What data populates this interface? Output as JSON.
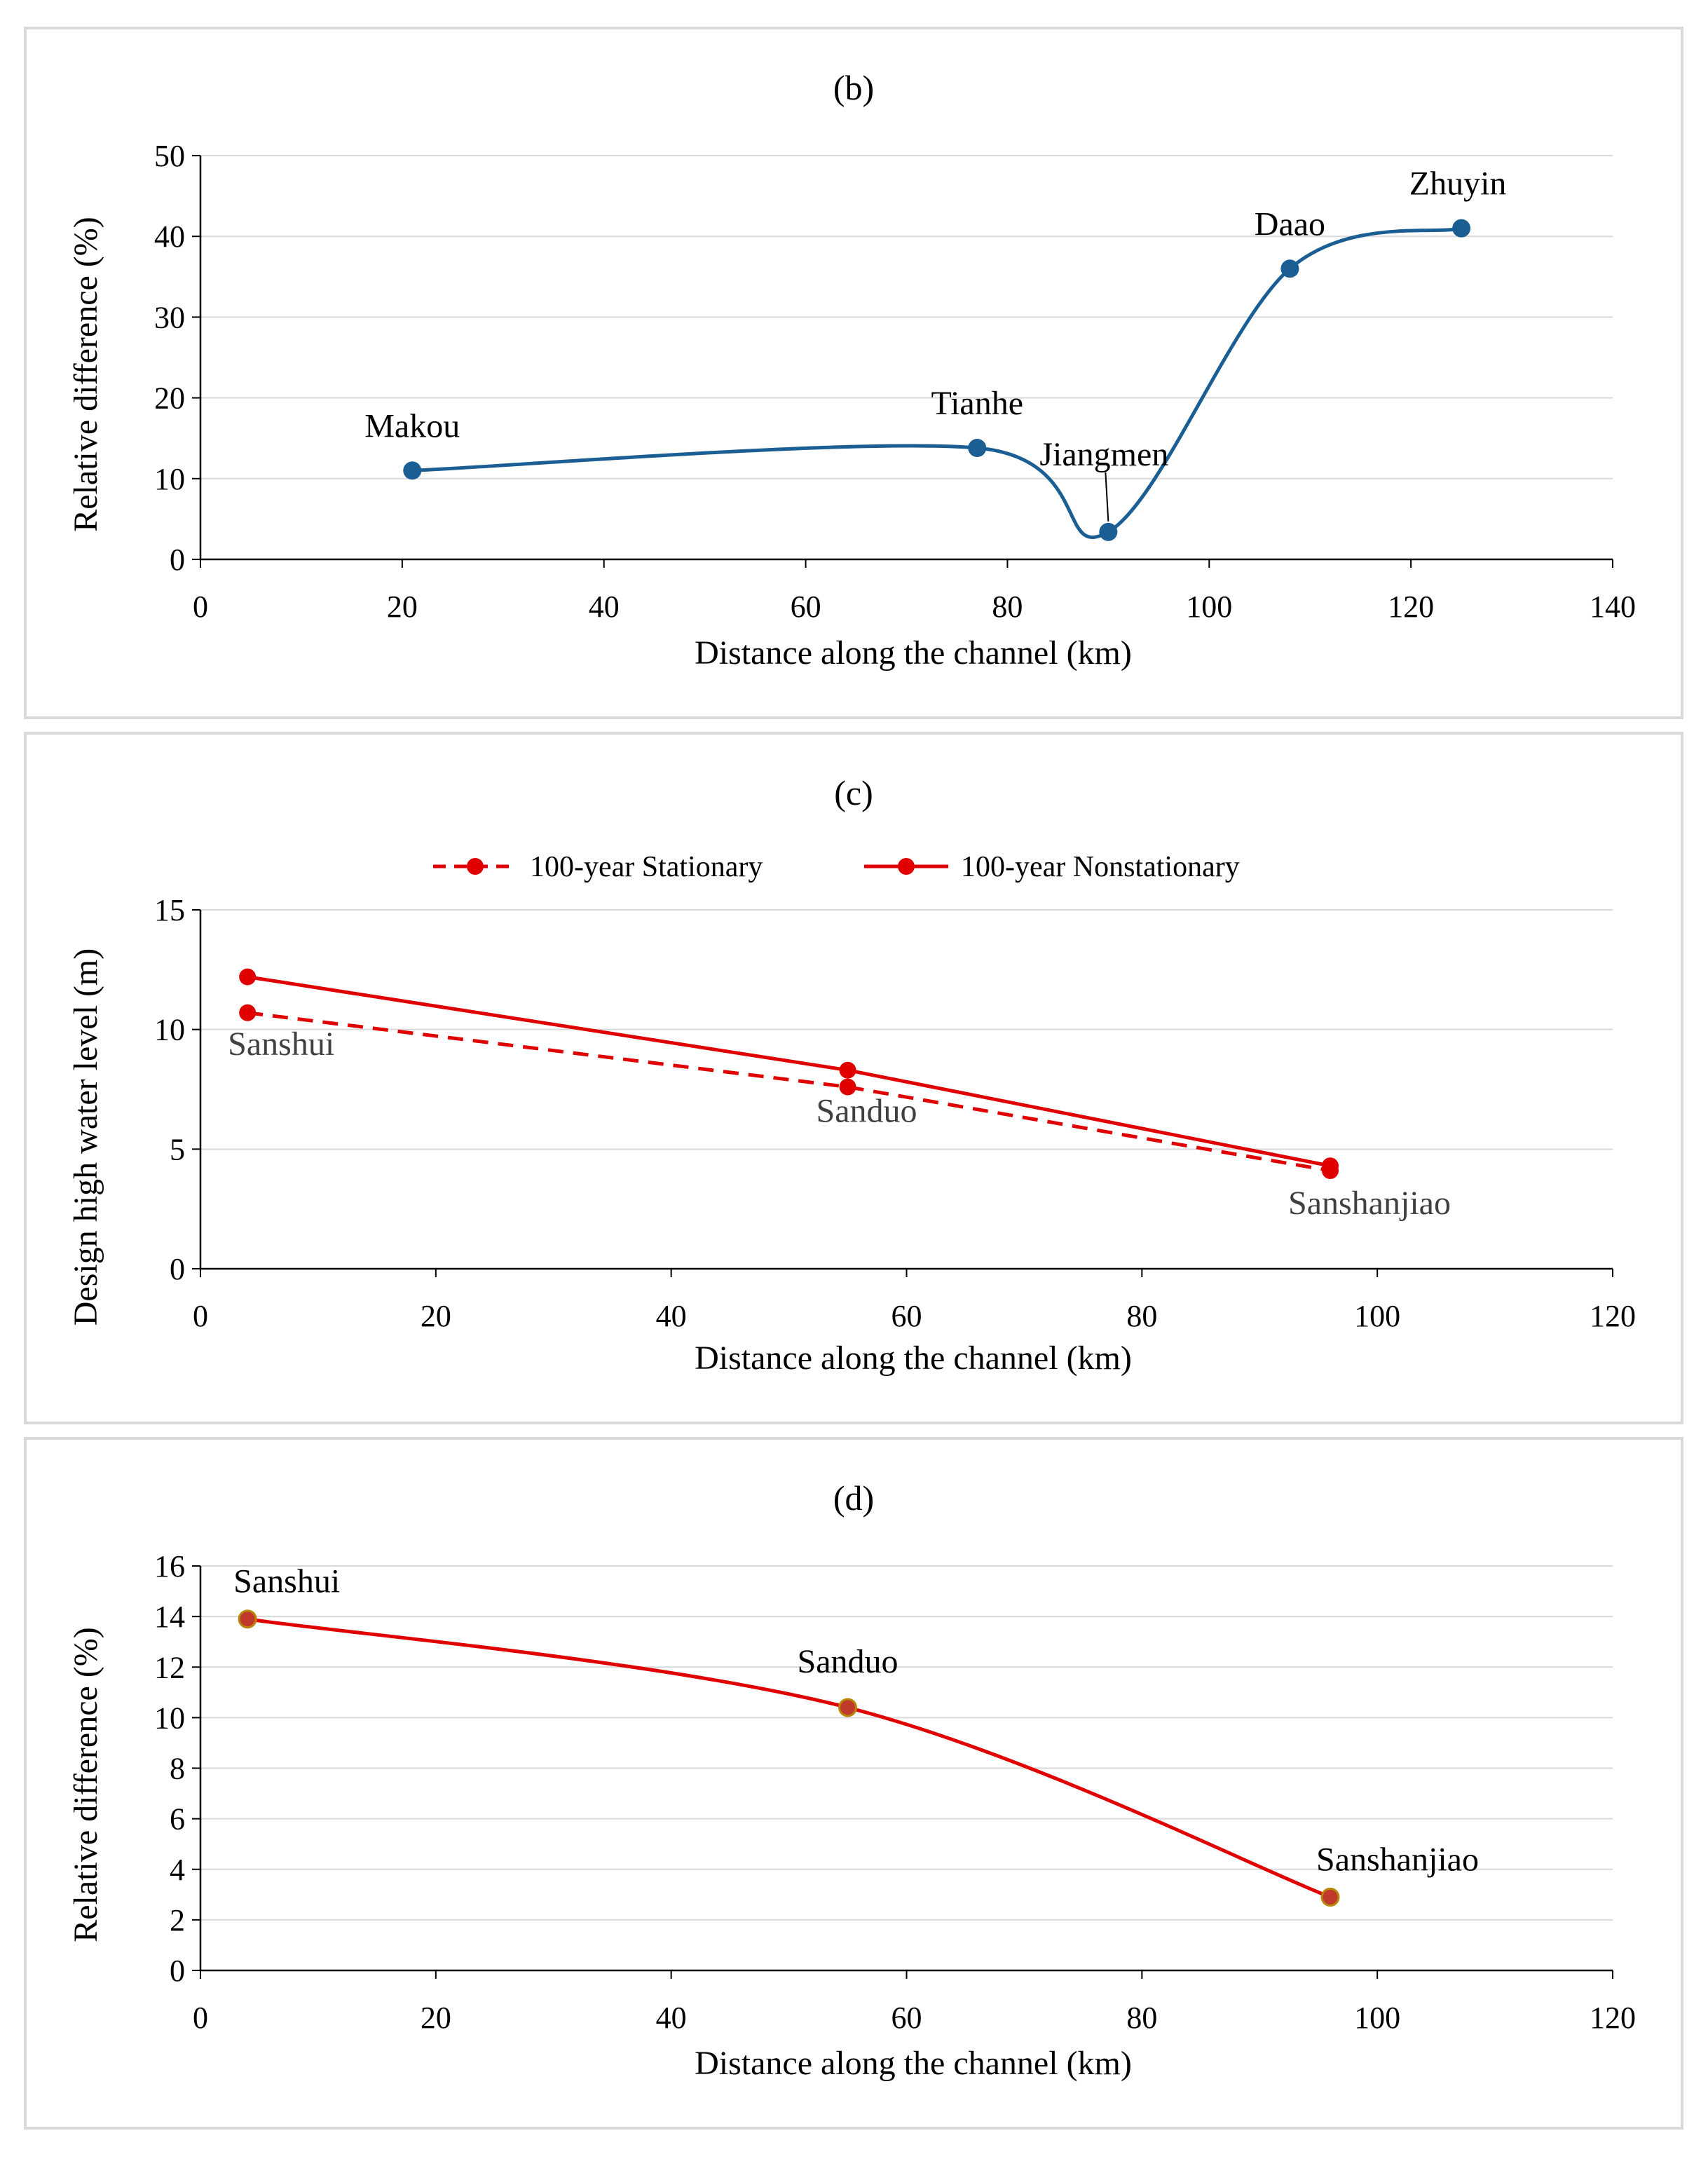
{
  "chart_data": [
    {
      "id": "b",
      "type": "line",
      "title": "(b)",
      "xlabel": "Distance along the channel (km)",
      "ylabel": "Relative difference (%)",
      "xlim": [
        0,
        140
      ],
      "ylim": [
        0,
        50
      ],
      "xticks": [
        0,
        20,
        40,
        60,
        80,
        100,
        120,
        140
      ],
      "yticks": [
        0,
        10,
        20,
        30,
        40,
        50
      ],
      "grid": true,
      "smooth": true,
      "colors": {
        "line": "#1a5e94",
        "marker": "#1a5e94"
      },
      "series": [
        {
          "points": [
            {
              "x": 21,
              "y": 11,
              "label": "Makou"
            },
            {
              "x": 77,
              "y": 13.8,
              "label": "Tianhe"
            },
            {
              "x": 90,
              "y": 3.4,
              "label": "Jiangmen"
            },
            {
              "x": 108,
              "y": 36,
              "label": "Daao"
            },
            {
              "x": 125,
              "y": 41,
              "label": "Zhuyin"
            }
          ]
        }
      ]
    },
    {
      "id": "c",
      "type": "line",
      "title": "(c)",
      "xlabel": "Distance along the channel (km)",
      "ylabel": "Design high water level (m)",
      "xlim": [
        0,
        120
      ],
      "ylim": [
        0,
        15
      ],
      "xticks": [
        0,
        20,
        40,
        60,
        80,
        100,
        120
      ],
      "yticks": [
        0,
        5,
        10,
        15
      ],
      "grid": true,
      "smooth": false,
      "legend": {
        "position": "top"
      },
      "point_labels": [
        {
          "x": 4,
          "text": "Sanshui"
        },
        {
          "x": 55,
          "text": "Sanduo"
        },
        {
          "x": 96,
          "text": "Sanshanjiao"
        }
      ],
      "series": [
        {
          "name": "100-year Stationary",
          "dashed": true,
          "color": "#e00000",
          "points": [
            {
              "x": 4,
              "y": 10.7
            },
            {
              "x": 55,
              "y": 7.6
            },
            {
              "x": 96,
              "y": 4.1
            }
          ]
        },
        {
          "name": "100-year Nonstationary",
          "dashed": false,
          "color": "#e00000",
          "points": [
            {
              "x": 4,
              "y": 12.2
            },
            {
              "x": 55,
              "y": 8.3
            },
            {
              "x": 96,
              "y": 4.3
            }
          ]
        }
      ]
    },
    {
      "id": "d",
      "type": "line",
      "title": "(d)",
      "xlabel": "Distance along the channel (km)",
      "ylabel": "Relative difference (%)",
      "xlim": [
        0,
        120
      ],
      "ylim": [
        0,
        16
      ],
      "xticks": [
        0,
        20,
        40,
        60,
        80,
        100,
        120
      ],
      "yticks": [
        0,
        2,
        4,
        6,
        8,
        10,
        12,
        14,
        16
      ],
      "grid": true,
      "smooth": true,
      "colors": {
        "line": "#e00000",
        "marker": "#c0392b",
        "marker_stroke": "#b8860b"
      },
      "series": [
        {
          "points": [
            {
              "x": 4,
              "y": 13.9,
              "label": "Sanshui"
            },
            {
              "x": 55,
              "y": 10.4,
              "label": "Sanduo"
            },
            {
              "x": 96,
              "y": 2.9,
              "label": "Sanshanjiao"
            }
          ]
        }
      ]
    }
  ]
}
